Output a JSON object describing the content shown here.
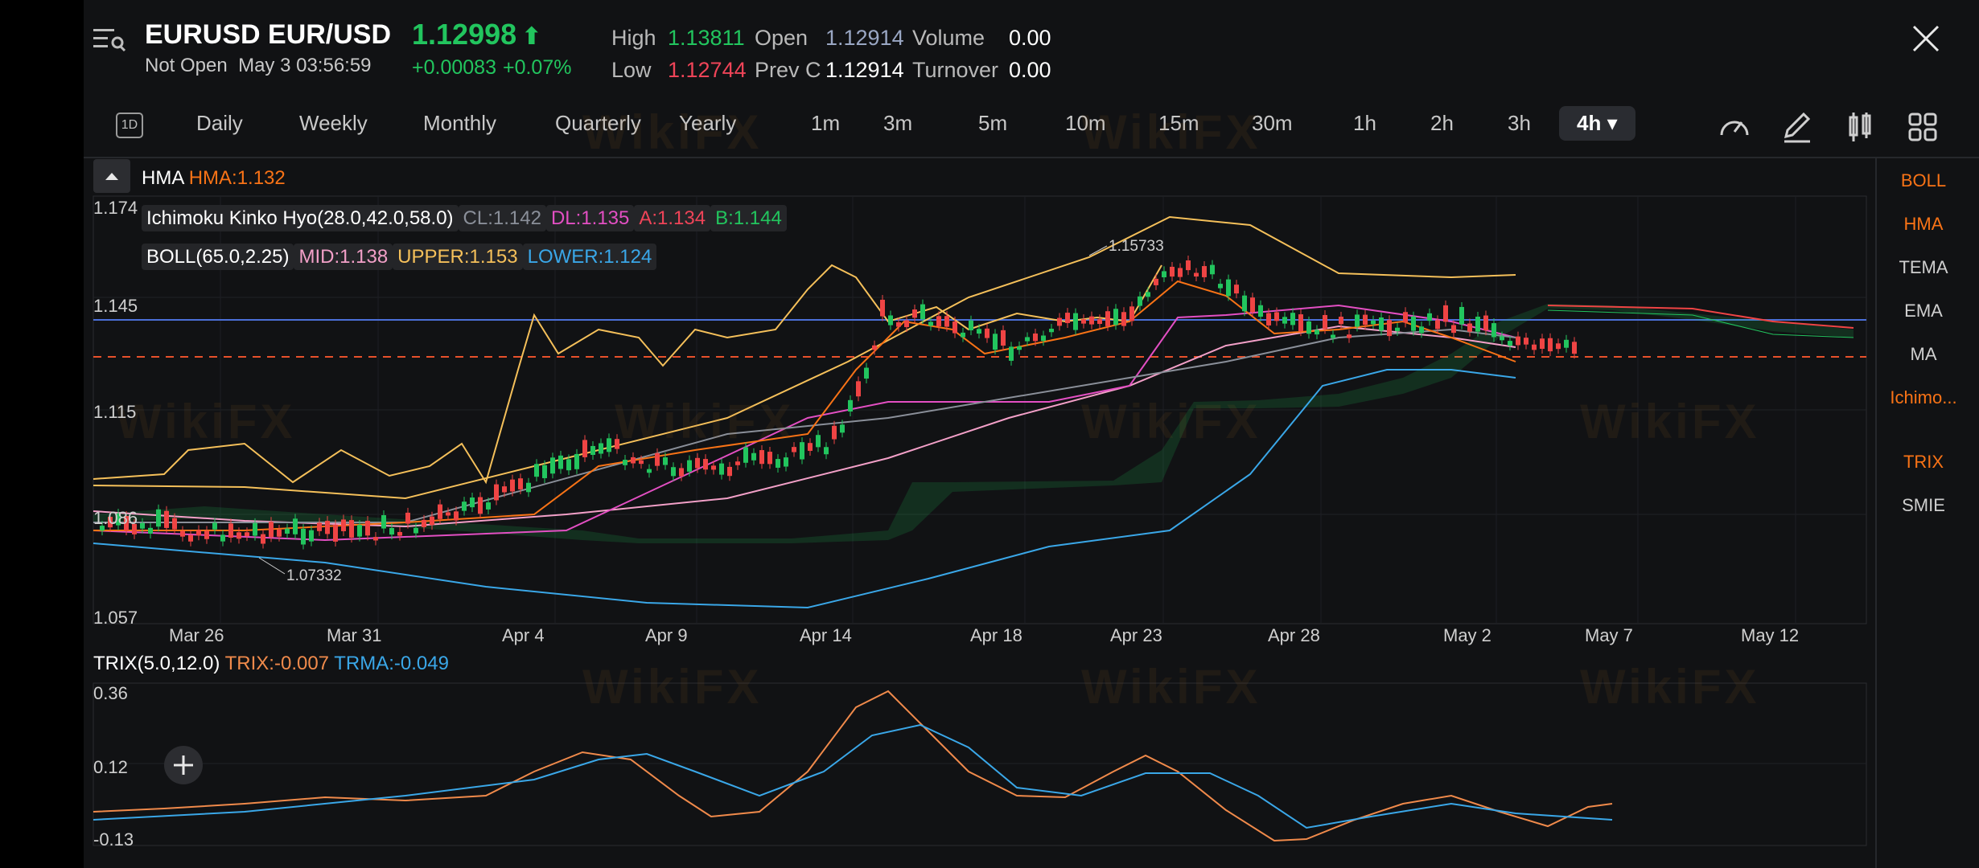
{
  "header": {
    "symbol": "EURUSD EUR/USD",
    "status": "Not Open",
    "datetime": "May 3 03:56:59",
    "price": "1.12998",
    "change_abs": "+0.00083",
    "change_pct": "+0.07%",
    "stats": {
      "high_label": "High",
      "high_value": "1.13811",
      "low_label": "Low",
      "low_value": "1.12744",
      "open_label": "Open",
      "open_value": "1.12914",
      "prevc_label": "Prev C",
      "prevc_value": "1.12914",
      "volume_label": "Volume",
      "volume_value": "0.00",
      "turnover_label": "Turnover",
      "turnover_value": "0.00"
    }
  },
  "periods": {
    "one_d": "1D",
    "items": [
      "Daily",
      "Weekly",
      "Monthly",
      "Quarterly",
      "Yearly",
      "1m",
      "3m",
      "5m",
      "10m",
      "15m",
      "30m",
      "1h",
      "2h",
      "3h"
    ],
    "active": "4h"
  },
  "main_indicators": {
    "hma_label": "HMA",
    "hma_value": "HMA:1.132",
    "ichimoku_label": "Ichimoku Kinko Hyo(28.0,42.0,58.0)",
    "ichimoku_cl": "CL:1.142",
    "ichimoku_dl": "DL:1.135",
    "ichimoku_a": "A:1.134",
    "ichimoku_b": "B:1.144",
    "boll_label": "BOLL(65.0,2.25)",
    "boll_mid": "MID:1.138",
    "boll_upper": "UPPER:1.153",
    "boll_lower": "LOWER:1.124"
  },
  "sub_indicators": {
    "trix_label": "TRIX(5.0,12.0)",
    "trix_value": "TRIX:-0.007",
    "trma_value": "TRMA:-0.049"
  },
  "price_axis": [
    "1.174",
    "1.145",
    "1.115",
    "1.086",
    "1.057"
  ],
  "trix_axis": [
    "0.36",
    "0.12",
    "-0.13"
  ],
  "dates": [
    "Mar 26",
    "Mar 31",
    "Apr 4",
    "Apr 9",
    "Apr 14",
    "Apr 18",
    "Apr 23",
    "Apr 28",
    "May 2",
    "May 7",
    "May 12"
  ],
  "annotations": {
    "max": "1.15733",
    "min": "1.07332"
  },
  "side_indicators": {
    "main": [
      "BOLL",
      "HMA",
      "TEMA",
      "EMA",
      "MA",
      "Ichimo..."
    ],
    "sub": [
      "TRIX",
      "SMIE"
    ]
  },
  "watermark": "WikiFX",
  "colors": {
    "up": "#22c55e",
    "down": "#ef4444",
    "orange": "#f97316",
    "boll_upper": "#f5c05a",
    "boll_lower": "#3aa7e8",
    "ichimoku_a": "#ef4458",
    "ichimoku_dl": "#e34fc3",
    "trix": "#f08a4b",
    "trma": "#3aa7e8",
    "active_indicator": "#f97316"
  }
}
